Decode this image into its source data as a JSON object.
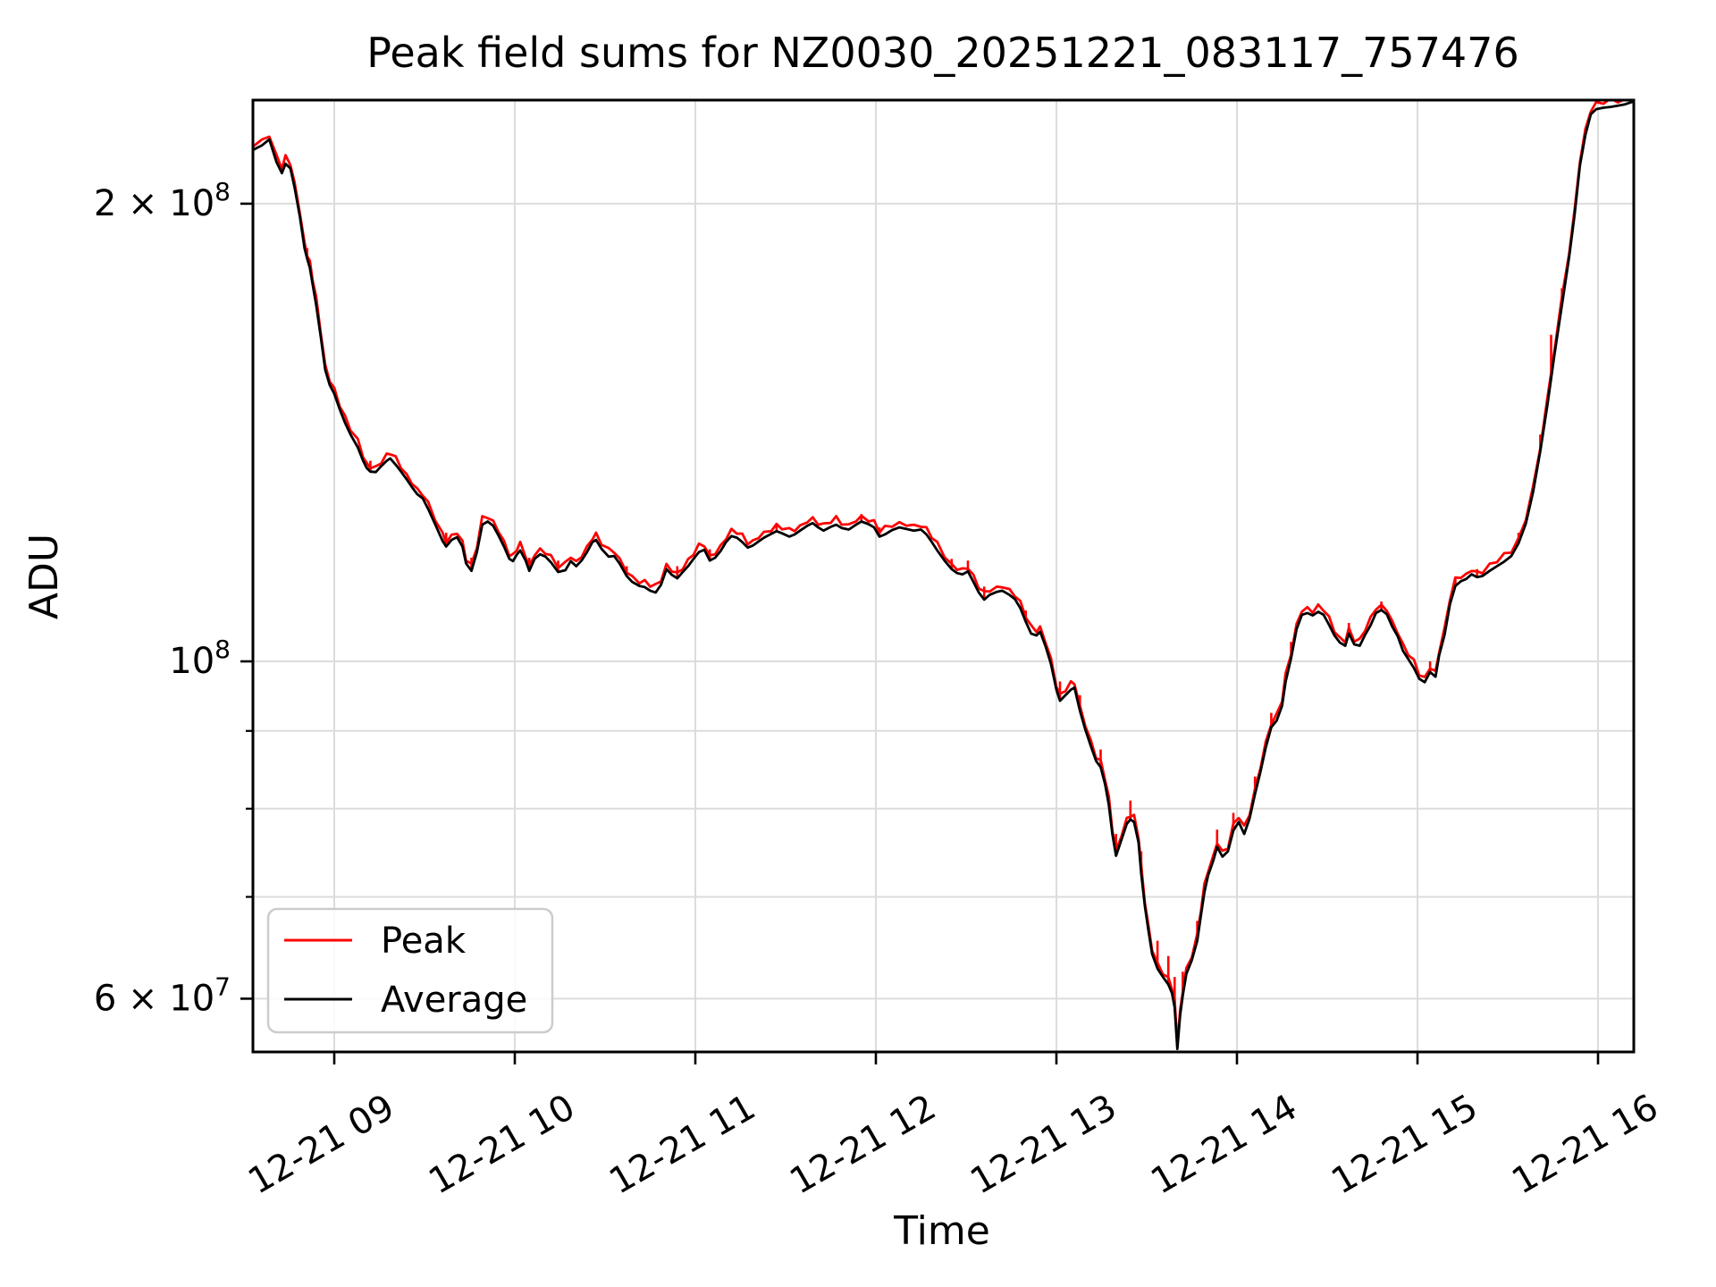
{
  "title": "Peak field sums for NZ0030_20251221_083117_757476",
  "x_axis": {
    "label": "Time",
    "ticks": [
      {
        "hour": 9,
        "label": "12-21 09"
      },
      {
        "hour": 10,
        "label": "12-21 10"
      },
      {
        "hour": 11,
        "label": "12-21 11"
      },
      {
        "hour": 12,
        "label": "12-21 12"
      },
      {
        "hour": 13,
        "label": "12-21 13"
      },
      {
        "hour": 14,
        "label": "12-21 14"
      },
      {
        "hour": 15,
        "label": "12-21 15"
      },
      {
        "hour": 16,
        "label": "12-21 16"
      }
    ]
  },
  "y_axis": {
    "label": "ADU",
    "scale": "log",
    "labeled_ticks": [
      {
        "value": 200,
        "prefix": "2 × 10",
        "exp": "8"
      },
      {
        "value": 100,
        "prefix": "10",
        "exp": "8"
      },
      {
        "value": 60,
        "prefix": "6 × 10",
        "exp": "7"
      }
    ],
    "minor_ticks": [
      90,
      80,
      70
    ],
    "gridline_values": [
      200,
      100,
      90,
      80,
      70,
      60
    ]
  },
  "legend": {
    "items": [
      {
        "label": "Peak",
        "color": "#ff0000"
      },
      {
        "label": "Average",
        "color": "#000000"
      }
    ]
  },
  "colors": {
    "peak": "#ff0000",
    "average": "#000000",
    "grid": "#dcdcdc",
    "spine": "#000000",
    "legend_border": "#cccccc"
  },
  "chart_data": {
    "type": "line",
    "title": "Peak field sums for NZ0030_20251221_083117_757476",
    "xlabel": "Time",
    "ylabel": "ADU",
    "x_unit": "hours on 12-21",
    "value_scale": 1000000,
    "value_unit": "ADU",
    "x_range_hours": [
      8.55,
      16.2
    ],
    "y_range_values_M": [
      55,
      234
    ],
    "grid": true,
    "legend_position": "lower left",
    "x_hours": [
      8.55,
      8.6,
      8.64,
      8.68,
      8.71,
      8.73,
      8.757,
      8.78,
      8.81,
      8.835,
      8.85,
      8.865,
      8.88,
      8.9,
      8.925,
      8.95,
      8.975,
      9.0,
      9.03,
      9.06,
      9.09,
      9.13,
      9.16,
      9.18,
      9.2,
      9.23,
      9.26,
      9.29,
      9.31,
      9.34,
      9.37,
      9.4,
      9.43,
      9.46,
      9.49,
      9.52,
      9.56,
      9.6,
      9.62,
      9.65,
      9.68,
      9.71,
      9.73,
      9.76,
      9.79,
      9.82,
      9.85,
      9.88,
      9.91,
      9.94,
      9.97,
      9.99,
      10.01,
      10.03,
      10.06,
      10.08,
      10.11,
      10.14,
      10.17,
      10.2,
      10.24,
      10.28,
      10.31,
      10.34,
      10.37,
      10.4,
      10.43,
      10.45,
      10.48,
      10.52,
      10.55,
      10.58,
      10.62,
      10.65,
      10.69,
      10.72,
      10.75,
      10.78,
      10.81,
      10.84,
      10.87,
      10.9,
      10.93,
      10.96,
      10.99,
      11.02,
      11.05,
      11.08,
      11.11,
      11.14,
      11.17,
      11.2,
      11.23,
      11.26,
      11.29,
      11.32,
      11.35,
      11.38,
      11.42,
      11.45,
      11.48,
      11.52,
      11.55,
      11.58,
      11.62,
      11.65,
      11.68,
      11.71,
      11.75,
      11.78,
      11.81,
      11.85,
      11.89,
      11.92,
      11.96,
      11.99,
      12.02,
      12.05,
      12.09,
      12.13,
      12.17,
      12.21,
      12.25,
      12.28,
      12.31,
      12.34,
      12.38,
      12.42,
      12.45,
      12.48,
      12.51,
      12.54,
      12.57,
      12.6,
      12.63,
      12.67,
      12.7,
      12.74,
      12.77,
      12.8,
      12.83,
      12.86,
      12.89,
      12.91,
      12.94,
      12.97,
      13.0,
      13.02,
      13.05,
      13.08,
      13.1,
      13.13,
      13.16,
      13.19,
      13.22,
      13.245,
      13.27,
      13.29,
      13.31,
      13.33,
      13.36,
      13.39,
      13.41,
      13.43,
      13.455,
      13.47,
      13.49,
      13.51,
      13.53,
      13.56,
      13.59,
      13.62,
      13.64,
      13.655,
      13.67,
      13.685,
      13.7,
      13.72,
      13.75,
      13.78,
      13.8,
      13.82,
      13.84,
      13.87,
      13.89,
      13.92,
      13.95,
      13.98,
      14.01,
      14.04,
      14.07,
      14.1,
      14.13,
      14.16,
      14.19,
      14.22,
      14.25,
      14.27,
      14.3,
      14.33,
      14.36,
      14.39,
      14.42,
      14.45,
      14.48,
      14.51,
      14.54,
      14.57,
      14.6,
      14.62,
      14.65,
      14.68,
      14.71,
      14.74,
      14.77,
      14.8,
      14.83,
      14.86,
      14.89,
      14.92,
      14.95,
      14.98,
      15.01,
      15.04,
      15.07,
      15.1,
      15.12,
      15.15,
      15.18,
      15.21,
      15.24,
      15.27,
      15.3,
      15.33,
      15.36,
      15.4,
      15.44,
      15.48,
      15.52,
      15.56,
      15.6,
      15.64,
      15.68,
      15.72,
      15.76,
      15.8,
      15.84,
      15.87,
      15.9,
      15.93,
      15.96,
      15.99,
      16.03,
      16.07,
      16.11,
      16.15,
      16.2
    ],
    "series": [
      {
        "name": "Average",
        "color": "#000000",
        "values_M": [
          217,
          218.5,
          220.5,
          213,
          209.5,
          212.5,
          211,
          205,
          196,
          187,
          184,
          181.5,
          177,
          171.5,
          163.5,
          155.5,
          152,
          150,
          146.5,
          143.5,
          141,
          138.3,
          135.5,
          134,
          133.3,
          133.2,
          134.4,
          135.5,
          136,
          134.7,
          133.3,
          131.8,
          130.2,
          128.8,
          128,
          126,
          123,
          120,
          119,
          120.2,
          120.7,
          119,
          116,
          114.7,
          118,
          123,
          123.6,
          122.8,
          121,
          119,
          116.8,
          116.4,
          117.5,
          118.3,
          116.5,
          114.7,
          116.8,
          117.6,
          117.2,
          116.2,
          114.5,
          114.8,
          116.4,
          115.5,
          116.5,
          118,
          119.8,
          120.2,
          118.6,
          117.2,
          117.3,
          116,
          113.8,
          112.8,
          112.1,
          111.9,
          111.3,
          111,
          112.3,
          115,
          114,
          113.4,
          114.5,
          115.5,
          116.8,
          118,
          118.4,
          116.5,
          117,
          118.2,
          119.8,
          120.9,
          120.6,
          119.8,
          118.8,
          119.2,
          119.9,
          120.6,
          121.3,
          121.8,
          121.4,
          120.8,
          121.2,
          121.9,
          122.8,
          123.3,
          122.5,
          121.9,
          122.6,
          123,
          122.4,
          122.1,
          123,
          123.6,
          123.1,
          122.5,
          120.8,
          121.2,
          122,
          122.5,
          122.2,
          121.9,
          122.1,
          121.2,
          119.8,
          118.3,
          116.5,
          115,
          114.3,
          114.1,
          114.6,
          112.8,
          111,
          109.8,
          110.6,
          111.1,
          111.3,
          110.6,
          109.9,
          108.4,
          106.2,
          104.3,
          104,
          104.6,
          102.3,
          99.6,
          95.8,
          94.2,
          95,
          95.8,
          96.1,
          92.8,
          90.2,
          88,
          86,
          85.2,
          83,
          80.5,
          77,
          74.5,
          76.3,
          78.2,
          78.7,
          78.4,
          76,
          72.5,
          69,
          66.5,
          64.2,
          62.8,
          62,
          61.3,
          60.5,
          59.2,
          55.6,
          58.5,
          60.3,
          62.3,
          63.6,
          65.5,
          68,
          70.5,
          72.3,
          74,
          75.5,
          74.4,
          75,
          77.4,
          78.4,
          77,
          78.8,
          81.8,
          84.6,
          87.8,
          90.5,
          91.4,
          93.5,
          97,
          100.5,
          105,
          107.3,
          107.6,
          107.2,
          107.8,
          107.3,
          105.7,
          104,
          102.9,
          102.4,
          104.3,
          102.6,
          102.4,
          104.1,
          105.6,
          107.6,
          108.1,
          107.4,
          105.4,
          103.9,
          101.6,
          100.3,
          99,
          97.4,
          96.9,
          98.4,
          97.7,
          100.9,
          104.1,
          109.1,
          112.1,
          112.9,
          113.3,
          114.1,
          113.6,
          113.8,
          114.7,
          115.5,
          116.3,
          117.3,
          119.6,
          123.2,
          129.2,
          137.5,
          147.5,
          159.5,
          171.5,
          184.5,
          196.5,
          212,
          222,
          229,
          230.8,
          231.3,
          231.6,
          232,
          232.5,
          233.6
        ]
      },
      {
        "name": "Peak",
        "color": "#ff0000",
        "derivation": "average times base ratio, plus spike tips listed below",
        "base_ratio_cycle": [
          1.005,
          1.009,
          1.004,
          1.011,
          1.006,
          1.013,
          1.005,
          1.008
        ],
        "spikes_M": [
          {
            "h": 8.85,
            "v": 187
          },
          {
            "h": 9.2,
            "v": 135.5
          },
          {
            "h": 9.62,
            "v": 121.5
          },
          {
            "h": 9.76,
            "v": 117
          },
          {
            "h": 10.08,
            "v": 117
          },
          {
            "h": 10.24,
            "v": 116.5
          },
          {
            "h": 10.62,
            "v": 115.5
          },
          {
            "h": 10.9,
            "v": 115.5
          },
          {
            "h": 11.08,
            "v": 118.5
          },
          {
            "h": 11.45,
            "v": 123.3
          },
          {
            "h": 11.92,
            "v": 125
          },
          {
            "h": 12.02,
            "v": 122.5
          },
          {
            "h": 12.42,
            "v": 116.8
          },
          {
            "h": 12.51,
            "v": 116.5
          },
          {
            "h": 12.6,
            "v": 112
          },
          {
            "h": 12.83,
            "v": 108
          },
          {
            "h": 13.02,
            "v": 97
          },
          {
            "h": 13.13,
            "v": 95
          },
          {
            "h": 13.245,
            "v": 87.5
          },
          {
            "h": 13.33,
            "v": 77
          },
          {
            "h": 13.41,
            "v": 81
          },
          {
            "h": 13.47,
            "v": 75
          },
          {
            "h": 13.56,
            "v": 65.5
          },
          {
            "h": 13.62,
            "v": 64
          },
          {
            "h": 13.655,
            "v": 62
          },
          {
            "h": 13.7,
            "v": 62.5
          },
          {
            "h": 13.78,
            "v": 67.5
          },
          {
            "h": 13.89,
            "v": 77.5
          },
          {
            "h": 13.98,
            "v": 79.5
          },
          {
            "h": 14.1,
            "v": 84
          },
          {
            "h": 14.19,
            "v": 92.5
          },
          {
            "h": 14.3,
            "v": 103
          },
          {
            "h": 14.62,
            "v": 106
          },
          {
            "h": 14.8,
            "v": 109.5
          },
          {
            "h": 15.07,
            "v": 100
          },
          {
            "h": 15.21,
            "v": 113.5
          },
          {
            "h": 15.33,
            "v": 115
          },
          {
            "h": 15.56,
            "v": 121.5
          },
          {
            "h": 15.68,
            "v": 141
          },
          {
            "h": 15.74,
            "v": 164
          },
          {
            "h": 15.8,
            "v": 176
          }
        ]
      }
    ]
  }
}
